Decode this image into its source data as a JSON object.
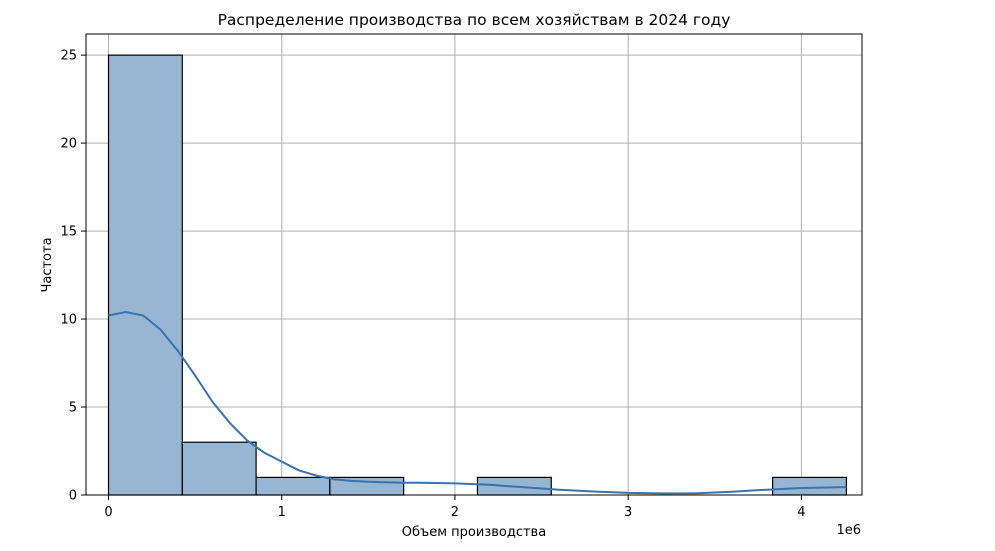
{
  "chart_data": {
    "type": "bar",
    "title": "Распределение производства по всем хозяйствам в 2024 году",
    "xlabel": "Объем производства",
    "ylabel": "Частота",
    "x_offset_label": "1e6",
    "xlim": [
      -0.13,
      4.35
    ],
    "ylim": [
      0,
      26.2
    ],
    "x_ticks": [
      0,
      1,
      2,
      3,
      4
    ],
    "x_tick_labels": [
      "0",
      "1",
      "2",
      "3",
      "4"
    ],
    "y_ticks": [
      0,
      5,
      10,
      15,
      20,
      25
    ],
    "y_tick_labels": [
      "0",
      "5",
      "10",
      "15",
      "20",
      "25"
    ],
    "grid": true,
    "legend": "none",
    "colors": {
      "bar_fill": "#97b6d4",
      "bar_edge": "#000000",
      "kde_line": "#3a72ad",
      "grid": "#b0b0b0"
    },
    "bins": [
      {
        "x0": 0.0,
        "x1": 0.426,
        "count": 25
      },
      {
        "x0": 0.426,
        "x1": 0.852,
        "count": 3
      },
      {
        "x0": 0.852,
        "x1": 1.278,
        "count": 1
      },
      {
        "x0": 1.278,
        "x1": 1.704,
        "count": 1
      },
      {
        "x0": 1.704,
        "x1": 2.13,
        "count": 0
      },
      {
        "x0": 2.13,
        "x1": 2.556,
        "count": 1
      },
      {
        "x0": 2.556,
        "x1": 2.982,
        "count": 0
      },
      {
        "x0": 2.982,
        "x1": 3.408,
        "count": 0
      },
      {
        "x0": 3.408,
        "x1": 3.834,
        "count": 0
      },
      {
        "x0": 3.834,
        "x1": 4.26,
        "count": 1
      }
    ],
    "kde": {
      "x": [
        0.0,
        0.1,
        0.2,
        0.3,
        0.4,
        0.5,
        0.6,
        0.7,
        0.8,
        0.9,
        1.0,
        1.1,
        1.2,
        1.3,
        1.4,
        1.5,
        1.6,
        1.7,
        1.8,
        2.0,
        2.2,
        2.4,
        2.6,
        2.8,
        3.0,
        3.2,
        3.4,
        3.6,
        3.8,
        4.0,
        4.26
      ],
      "y": [
        10.2,
        10.4,
        10.2,
        9.4,
        8.2,
        6.8,
        5.3,
        4.1,
        3.1,
        2.4,
        1.9,
        1.4,
        1.1,
        0.9,
        0.8,
        0.75,
        0.72,
        0.7,
        0.7,
        0.66,
        0.58,
        0.44,
        0.3,
        0.2,
        0.12,
        0.09,
        0.1,
        0.18,
        0.3,
        0.4,
        0.45
      ]
    }
  }
}
